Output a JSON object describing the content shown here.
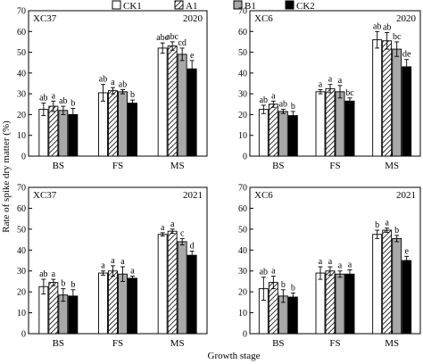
{
  "figure": {
    "ylabel": "Rate of spike dry matter (%)",
    "xlabel": "Growth stage",
    "legend": [
      {
        "name": "CK1",
        "fill": "#ffffff",
        "pattern": "none"
      },
      {
        "name": "A1",
        "fill": "#ffffff",
        "pattern": "hatch"
      },
      {
        "name": "B1",
        "fill": "#a8a8a8",
        "pattern": "none"
      },
      {
        "name": "CK2",
        "fill": "#000000",
        "pattern": "none"
      }
    ]
  },
  "chart_data": [
    {
      "type": "bar",
      "panel_label": "XC37",
      "year": "2020",
      "categories": [
        "BS",
        "FS",
        "MS"
      ],
      "ylim": [
        0,
        70
      ],
      "yticks": [
        0,
        10,
        20,
        30,
        40,
        50,
        60,
        70
      ],
      "series": [
        {
          "name": "CK1",
          "values": [
            22.5,
            30.5,
            52
          ],
          "errors": [
            3,
            4,
            2.5
          ],
          "letters": [
            "ab",
            "ab",
            "abc"
          ]
        },
        {
          "name": "A1",
          "values": [
            24,
            31.5,
            53
          ],
          "errors": [
            2.5,
            1.5,
            2
          ],
          "letters": [
            "a",
            "a",
            "abc"
          ]
        },
        {
          "name": "B1",
          "values": [
            22,
            31,
            49
          ],
          "errors": [
            2,
            1,
            3
          ],
          "letters": [
            "ab",
            "ab",
            "cd"
          ]
        },
        {
          "name": "CK2",
          "values": [
            20,
            25.5,
            42
          ],
          "errors": [
            3,
            1.5,
            4
          ],
          "letters": [
            "b",
            "b",
            "e"
          ]
        }
      ]
    },
    {
      "type": "bar",
      "panel_label": "XC6",
      "year": "2020",
      "categories": [
        "BS",
        "FS",
        "MS"
      ],
      "ylim": [
        0,
        70
      ],
      "yticks": [
        0,
        10,
        20,
        30,
        40,
        50,
        60,
        70
      ],
      "series": [
        {
          "name": "CK1",
          "values": [
            22.5,
            31,
            56
          ],
          "errors": [
            2,
            1,
            4
          ],
          "letters": [
            "ab",
            "a",
            "ab"
          ]
        },
        {
          "name": "A1",
          "values": [
            25,
            32.5,
            55.5
          ],
          "errors": [
            1.5,
            2,
            4
          ],
          "letters": [
            "a",
            "a",
            "ab"
          ]
        },
        {
          "name": "B1",
          "values": [
            21.5,
            31,
            51.5
          ],
          "errors": [
            1,
            3,
            3.5
          ],
          "letters": [
            "ab",
            "a",
            "bc"
          ]
        },
        {
          "name": "CK2",
          "values": [
            19.5,
            26.5,
            43
          ],
          "errors": [
            2,
            1.5,
            3.5
          ],
          "letters": [
            "b",
            "bc",
            "de"
          ]
        }
      ]
    },
    {
      "type": "bar",
      "panel_label": "XC37",
      "year": "2021",
      "categories": [
        "BS",
        "FS",
        "MS"
      ],
      "ylim": [
        0,
        70
      ],
      "yticks": [
        0,
        10,
        20,
        30,
        40,
        50,
        60,
        70
      ],
      "series": [
        {
          "name": "CK1",
          "values": [
            22.5,
            29,
            47.5
          ],
          "errors": [
            3.5,
            1,
            0.8
          ],
          "letters": [
            "ab",
            "a",
            "a"
          ]
        },
        {
          "name": "A1",
          "values": [
            24.5,
            30,
            49
          ],
          "errors": [
            1.5,
            2.5,
            1
          ],
          "letters": [
            "a",
            "a",
            "a"
          ]
        },
        {
          "name": "B1",
          "values": [
            18.5,
            28.5,
            44
          ],
          "errors": [
            3,
            3.5,
            1.5
          ],
          "letters": [
            "b",
            "a",
            "c"
          ]
        },
        {
          "name": "CK2",
          "values": [
            18,
            26.5,
            37.5
          ],
          "errors": [
            3,
            1,
            2
          ],
          "letters": [
            "b",
            "a",
            "d"
          ]
        }
      ]
    },
    {
      "type": "bar",
      "panel_label": "XC6",
      "year": "2021",
      "categories": [
        "BS",
        "FS",
        "MS"
      ],
      "ylim": [
        0,
        70
      ],
      "yticks": [
        0,
        10,
        20,
        30,
        40,
        50,
        60,
        70
      ],
      "series": [
        {
          "name": "CK1",
          "values": [
            21.5,
            29,
            47.5
          ],
          "errors": [
            5.5,
            3,
            2
          ],
          "letters": [
            "ab",
            "a",
            "b"
          ]
        },
        {
          "name": "A1",
          "values": [
            24.5,
            30,
            49.5
          ],
          "errors": [
            3,
            2,
            1
          ],
          "letters": [
            "a",
            "a",
            "a"
          ]
        },
        {
          "name": "B1",
          "values": [
            18,
            28.5,
            45.5
          ],
          "errors": [
            3,
            1.5,
            1.5
          ],
          "letters": [
            "b",
            "a",
            "b"
          ]
        },
        {
          "name": "CK2",
          "values": [
            17.5,
            28.5,
            35
          ],
          "errors": [
            2,
            2,
            2
          ],
          "letters": [
            "b",
            "a",
            "e"
          ]
        }
      ]
    }
  ]
}
